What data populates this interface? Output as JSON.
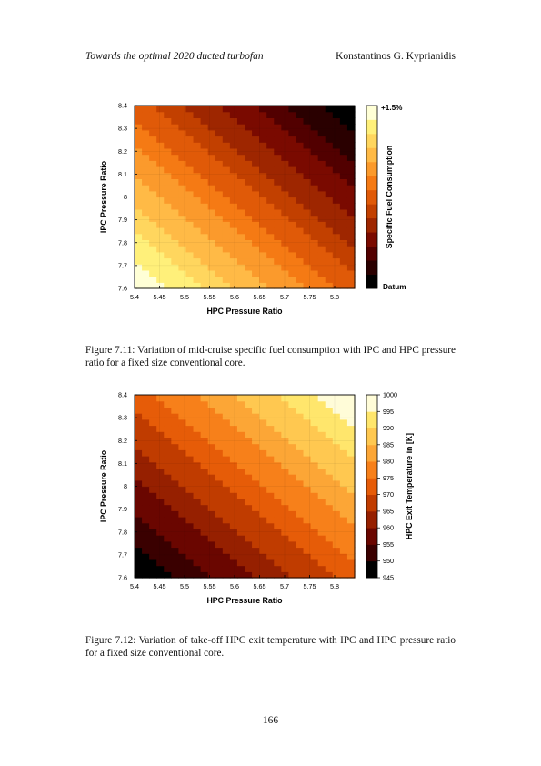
{
  "header": {
    "title": "Towards the optimal 2020 ducted turbofan",
    "author": "Konstantinos G. Kyprianidis"
  },
  "figures": [
    {
      "caption": "Figure 7.11:  Variation of mid-cruise specific fuel consumption with IPC and HPC pressure ratio for a fixed size conventional core.",
      "chart_data": {
        "type": "heatmap",
        "xlabel": "HPC Pressure Ratio",
        "ylabel": "IPC Pressure Ratio",
        "x_ticks": [
          "5.4",
          "5.45",
          "5.5",
          "5.55",
          "5.6",
          "5.65",
          "5.7",
          "5.75",
          "5.8"
        ],
        "y_ticks": [
          "7.6",
          "7.7",
          "7.8",
          "7.9",
          "8",
          "8.1",
          "8.2",
          "8.3",
          "8.4"
        ],
        "xlim": [
          5.4,
          5.84
        ],
        "ylim": [
          7.6,
          8.4
        ],
        "colorbar": {
          "label": "Specific Fuel Consumption",
          "top_label": "+1.5%",
          "bottom_label": "Datum",
          "levels": 13,
          "ticks": []
        },
        "gradient": "value decreases toward high HPC and high IPC pressure ratio; contour bands run diagonally",
        "colors": [
          "#000000",
          "#2a0000",
          "#520000",
          "#7a0a00",
          "#9e2600",
          "#c24000",
          "#e05a08",
          "#f57a14",
          "#fb9a2c",
          "#ffba46",
          "#ffd65e",
          "#fff07a",
          "#ffffd6"
        ]
      }
    },
    {
      "caption": "Figure 7.12:  Variation of take-off HPC exit temperature with IPC and HPC pressure ratio for a fixed size conventional core.",
      "chart_data": {
        "type": "heatmap",
        "xlabel": "HPC Pressure Ratio",
        "ylabel": "IPC Pressure Ratio",
        "x_ticks": [
          "5.4",
          "5.45",
          "5.5",
          "5.55",
          "5.6",
          "5.65",
          "5.7",
          "5.75",
          "5.8"
        ],
        "y_ticks": [
          "7.6",
          "7.7",
          "7.8",
          "7.9",
          "8",
          "8.1",
          "8.2",
          "8.3",
          "8.4"
        ],
        "xlim": [
          5.4,
          5.84
        ],
        "ylim": [
          7.6,
          8.4
        ],
        "colorbar": {
          "label": "HPC Exit Temperature in [K]",
          "top_label": "",
          "bottom_label": "",
          "levels": 11,
          "ticks": [
            "945",
            "950",
            "955",
            "960",
            "965",
            "970",
            "975",
            "980",
            "985",
            "990",
            "995",
            "1000"
          ]
        },
        "gradient": "value increases toward high HPC and high IPC pressure ratio; contour bands run diagonally",
        "colors": [
          "#000000",
          "#3a0000",
          "#6a0600",
          "#962000",
          "#c03c00",
          "#e65c08",
          "#f7801a",
          "#fca636",
          "#ffc850",
          "#ffe66c",
          "#fffcd8"
        ]
      }
    }
  ],
  "page_number": "166"
}
